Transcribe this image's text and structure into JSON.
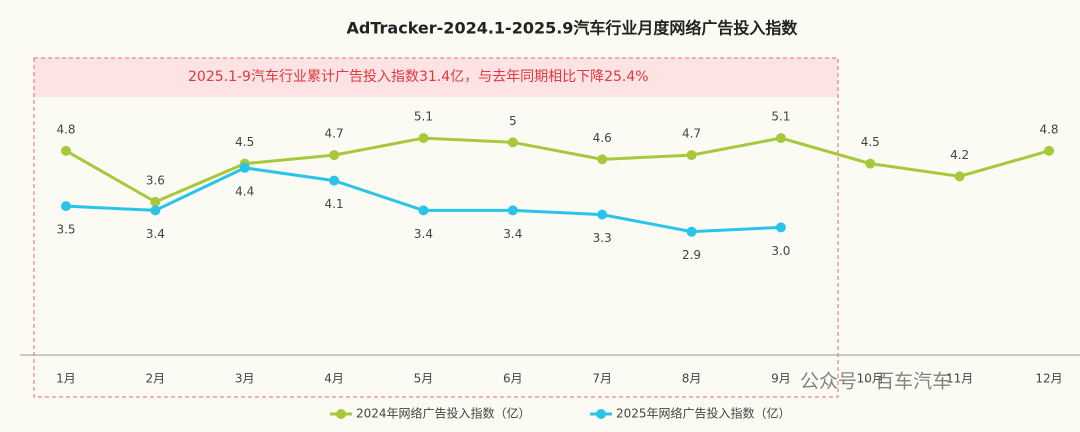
{
  "chart_data": {
    "type": "line",
    "title": "AdTracker-2024.1-2025.9汽车行业月度网络广告投入指数",
    "annotation": "2025.1-9汽车行业累计广告投入指数31.4亿，与去年同期相比下降25.4%",
    "watermark": "公众号 · 百车汽车",
    "categories": [
      "1月",
      "2月",
      "3月",
      "4月",
      "5月",
      "6月",
      "7月",
      "8月",
      "9月",
      "10月",
      "11月",
      "12月"
    ],
    "ylim": [
      0,
      7.5
    ],
    "legend": "bottom",
    "series": [
      {
        "name": "2024年网络广告投入指数（亿）",
        "color": "#a8c83c",
        "values": [
          4.8,
          3.6,
          4.5,
          4.7,
          5.1,
          5,
          4.6,
          4.7,
          5.1,
          4.5,
          4.2,
          4.8
        ]
      },
      {
        "name": "2025年网络广告投入指数（亿）",
        "color": "#2ac4ea",
        "values": [
          3.5,
          3.4,
          4.4,
          4.1,
          3.4,
          3.4,
          3.3,
          2.9,
          3.0,
          null,
          null,
          null
        ],
        "value_labels": [
          "3.5",
          "3.4",
          "4.4",
          "4.1",
          "3.4",
          "3.4",
          "3.3",
          "2.9",
          "3.0",
          null,
          null,
          null
        ]
      }
    ]
  }
}
